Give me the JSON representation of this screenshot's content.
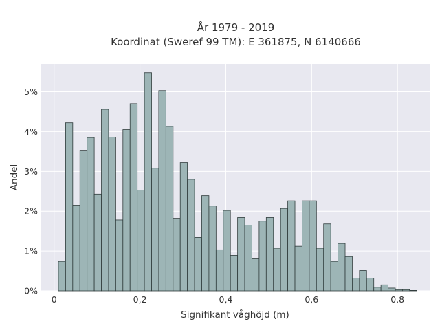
{
  "chart_data": {
    "type": "bar",
    "title": "År 1979 - 2019",
    "subtitle": "Koordinat (Sweref 99 TM): E 361875, N 6140666",
    "xlabel": "Signifikant våghöjd (m)",
    "ylabel": "Andel",
    "xlim": [
      -0.03,
      0.875
    ],
    "ylim": [
      0,
      0.057
    ],
    "x_ticks": [
      0,
      0.2,
      0.4,
      0.6,
      0.8
    ],
    "x_tick_labels": [
      "0",
      "0,2",
      "0,4",
      "0,6",
      "0,8"
    ],
    "y_ticks": [
      0,
      0.01,
      0.02,
      0.03,
      0.04,
      0.05
    ],
    "y_tick_labels": [
      "0%",
      "1%",
      "2%",
      "3%",
      "4%",
      "5%"
    ],
    "grid": true,
    "bin_width": 0.0167,
    "bin_start": 0.01,
    "values": [
      0.0074,
      0.0422,
      0.0215,
      0.0353,
      0.0385,
      0.0243,
      0.0456,
      0.0386,
      0.0178,
      0.0405,
      0.047,
      0.0253,
      0.0548,
      0.0308,
      0.0503,
      0.0413,
      0.0182,
      0.0322,
      0.028,
      0.0134,
      0.0239,
      0.0213,
      0.0103,
      0.0202,
      0.0089,
      0.0184,
      0.0165,
      0.0082,
      0.0175,
      0.0184,
      0.0107,
      0.0207,
      0.0226,
      0.0112,
      0.0226,
      0.0226,
      0.0107,
      0.0168,
      0.0074,
      0.0119,
      0.0086,
      0.0032,
      0.0051,
      0.0032,
      0.0009,
      0.0015,
      0.0007,
      0.0003,
      0.0003,
      0.0001
    ],
    "colors": {
      "bar_fill": "#9db5b6",
      "bar_edge": "#2f3b3b",
      "plot_background": "#e8e8f0"
    }
  }
}
